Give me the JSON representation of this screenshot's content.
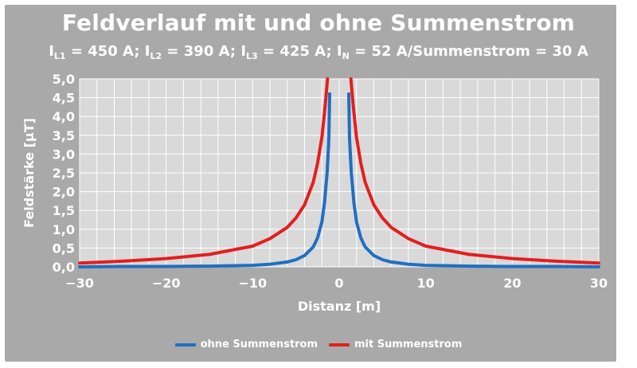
{
  "chart_data": {
    "type": "line",
    "title": "Feldverlauf mit und ohne Summenstrom",
    "subtitle_parts": {
      "i": "I",
      "l1_sub": "L1",
      "l1_val": " = 450 A; ",
      "l2_sub": "L2",
      "l2_val": " = 390 A; ",
      "l3_sub": "L3",
      "l3_val": " = 425 A; ",
      "n_sub": "N",
      "n_val": " = 52 A/Summenstrom = 30 A"
    },
    "xlabel": "Distanz [m]",
    "ylabel": "Feldstärke [µT]",
    "xlim": [
      -30,
      30
    ],
    "ylim": [
      0,
      5
    ],
    "x_ticks": [
      "−30",
      "−20",
      "−10",
      "0",
      "10",
      "20",
      "30"
    ],
    "y_ticks": [
      "0,0",
      "0,5",
      "1,0",
      "1,5",
      "2,0",
      "2,5",
      "3,0",
      "3,5",
      "4,0",
      "4,5",
      "5,0"
    ],
    "grid": true,
    "legend_position": "bottom",
    "series": [
      {
        "name": "ohne Summenstrom",
        "color": "#1f6fc1",
        "x": [
          -30,
          -25,
          -20,
          -15,
          -10,
          -8,
          -6,
          -5,
          -4,
          -3,
          -2.5,
          -2,
          -1.7,
          -1.4,
          -1.2,
          -1.1,
          1.1,
          1.2,
          1.4,
          1.7,
          2,
          2.5,
          3,
          4,
          5,
          6,
          8,
          10,
          15,
          20,
          25,
          30
        ],
        "y": [
          0.0,
          0.01,
          0.01,
          0.02,
          0.04,
          0.07,
          0.13,
          0.19,
          0.3,
          0.53,
          0.77,
          1.2,
          1.7,
          2.5,
          3.4,
          4.6,
          4.6,
          3.4,
          2.5,
          1.7,
          1.2,
          0.77,
          0.53,
          0.3,
          0.19,
          0.13,
          0.07,
          0.04,
          0.02,
          0.01,
          0.01,
          0.0
        ]
      },
      {
        "name": "mit Summenstrom",
        "color": "#e41e1e",
        "x": [
          -30,
          -25,
          -20,
          -15,
          -10,
          -8,
          -6,
          -5,
          -4,
          -3,
          -2.5,
          -2,
          -1.7,
          -1.5,
          -1.35,
          1.35,
          1.5,
          1.7,
          2,
          2.5,
          3,
          4,
          5,
          6,
          8,
          10,
          15,
          20,
          25,
          30
        ],
        "y": [
          0.1,
          0.15,
          0.22,
          0.33,
          0.55,
          0.75,
          1.05,
          1.3,
          1.65,
          2.25,
          2.75,
          3.45,
          4.1,
          4.6,
          5.0,
          5.0,
          4.6,
          4.1,
          3.45,
          2.75,
          2.25,
          1.65,
          1.3,
          1.05,
          0.75,
          0.55,
          0.33,
          0.22,
          0.15,
          0.1
        ]
      }
    ]
  }
}
